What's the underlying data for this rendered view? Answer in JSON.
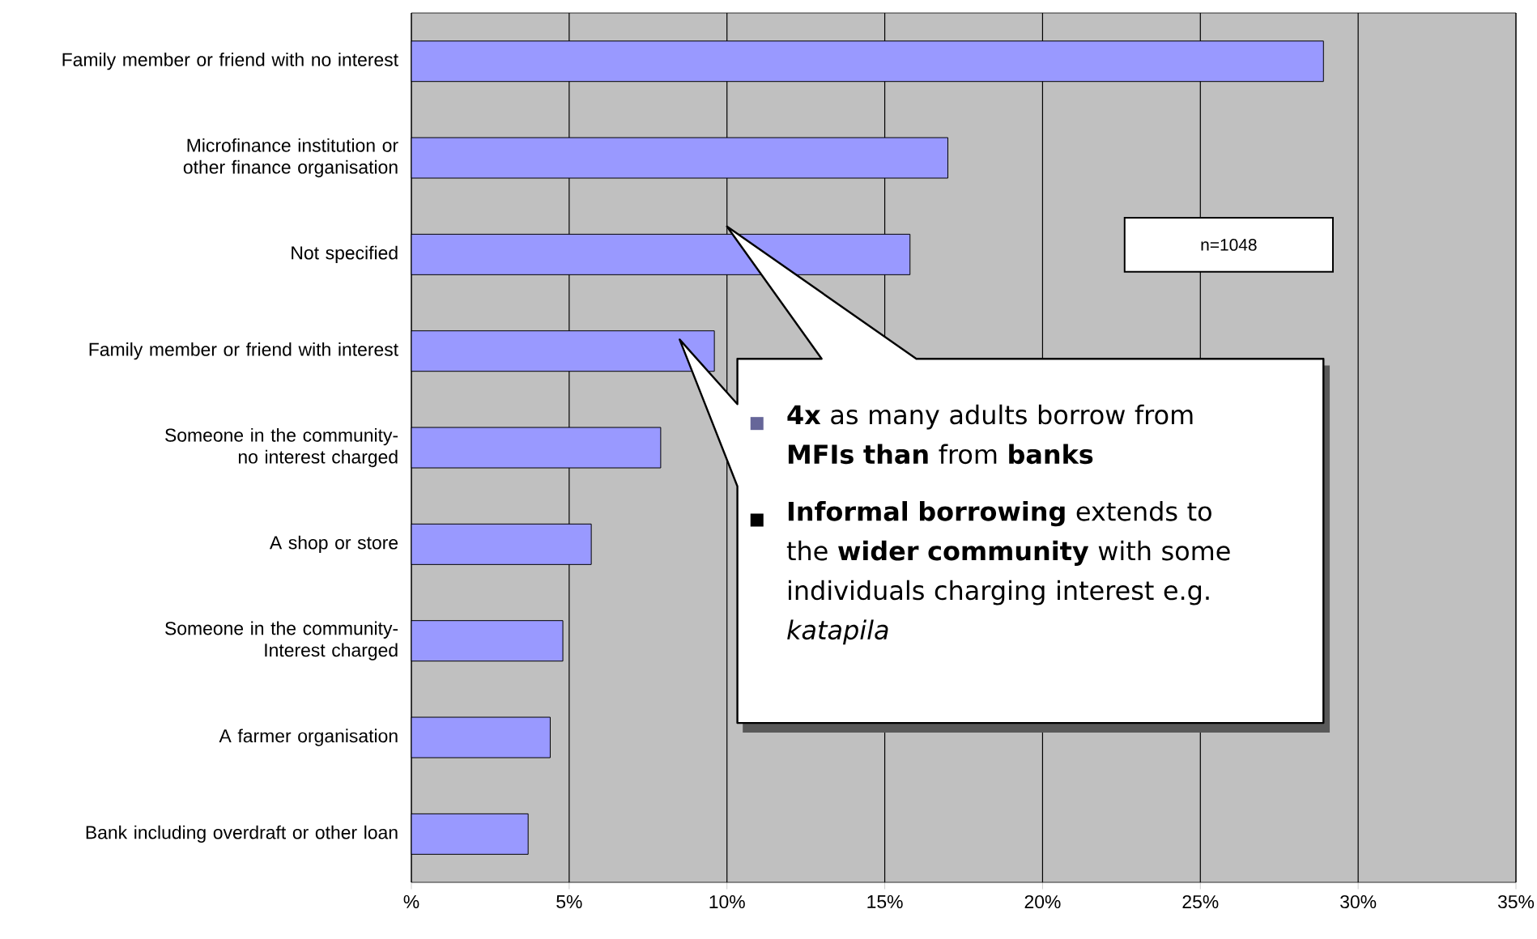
{
  "chart_data": {
    "type": "bar",
    "orientation": "horizontal",
    "categories": [
      "Family member or friend with no interest",
      "Microfinance institution or other finance organisation",
      "Not specified",
      "Family member or friend with interest",
      "Someone in the community-no interest charged",
      "A shop or store",
      "Someone in the community-Interest charged",
      "A farmer organisation",
      "Bank including overdraft or other loan"
    ],
    "values": [
      28.9,
      17.0,
      15.8,
      9.6,
      7.9,
      5.7,
      4.8,
      4.4,
      3.7
    ],
    "color": "#9999ff",
    "xlim": [
      0,
      35
    ],
    "xticks": [
      {
        "value": 0,
        "label": "%"
      },
      {
        "value": 5,
        "label": "5%"
      },
      {
        "value": 10,
        "label": "10%"
      },
      {
        "value": 15,
        "label": "15%"
      },
      {
        "value": 20,
        "label": "20%"
      },
      {
        "value": 25,
        "label": "25%"
      },
      {
        "value": 30,
        "label": "30%"
      },
      {
        "value": 35,
        "label": "35%"
      }
    ],
    "grid": "x",
    "annotations": [
      "n=1048",
      "**4x** as many adults borrow from **MFIs than** from **banks**",
      "**Informal borrowing** extends to the **wider community** with some individuals charging interest e.g. *katapila*"
    ]
  }
}
